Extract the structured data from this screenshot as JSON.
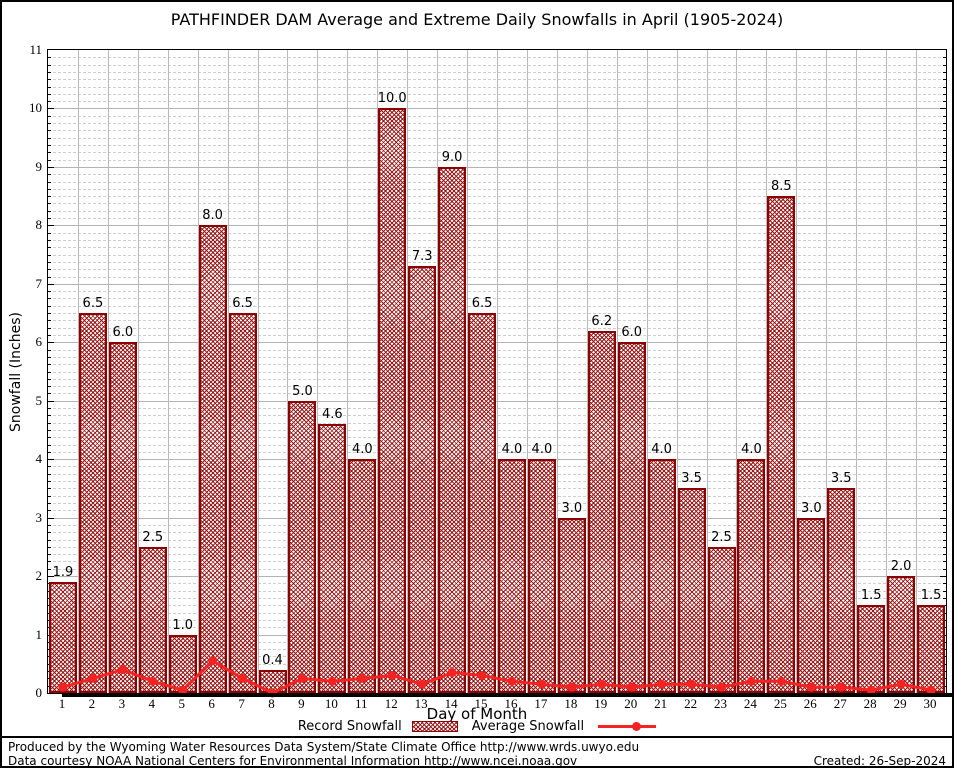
{
  "title": "PATHFINDER DAM Average and Extreme Daily Snowfalls in April (1905-2024)",
  "chart_data": {
    "type": "bar",
    "title": "PATHFINDER DAM Average and Extreme Daily Snowfalls in April (1905-2024)",
    "xlabel": "Day of Month",
    "ylabel": "Snowfall (Inches)",
    "ylim": [
      0,
      11
    ],
    "xlim_days": [
      1,
      30
    ],
    "grid": true,
    "legend_position": "bottom",
    "x": [
      1,
      2,
      3,
      4,
      5,
      6,
      7,
      8,
      9,
      10,
      11,
      12,
      13,
      14,
      15,
      16,
      17,
      18,
      19,
      20,
      21,
      22,
      23,
      24,
      25,
      26,
      27,
      28,
      29,
      30
    ],
    "series": [
      {
        "name": "Record Snowfall",
        "type": "bar",
        "values": [
          1.9,
          6.5,
          6.0,
          2.5,
          1.0,
          8.0,
          6.5,
          0.4,
          5.0,
          4.6,
          4.0,
          10.0,
          7.3,
          9.0,
          6.5,
          4.0,
          4.0,
          3.0,
          6.2,
          6.0,
          4.0,
          3.5,
          2.5,
          4.0,
          8.5,
          3.0,
          3.5,
          1.5,
          2.0,
          1.5
        ],
        "labels": [
          "1.9",
          "6.5",
          "6.0",
          "2.5",
          "1.0",
          "8.0",
          "6.5",
          "0.4",
          "5.0",
          "4.6",
          "4.0",
          "10.0",
          "7.3",
          "9.0",
          "6.5",
          "4.0",
          "4.0",
          "3.0",
          "6.2",
          "6.0",
          "4.0",
          "3.5",
          "2.5",
          "4.0",
          "8.5",
          "3.0",
          "3.5",
          "1.5",
          "2.0",
          "1.5"
        ]
      },
      {
        "name": "Average Snowfall",
        "type": "line",
        "values": [
          0.1,
          0.25,
          0.4,
          0.2,
          0.05,
          0.55,
          0.25,
          0.0,
          0.25,
          0.2,
          0.25,
          0.3,
          0.15,
          0.35,
          0.3,
          0.2,
          0.15,
          0.1,
          0.15,
          0.1,
          0.15,
          0.15,
          0.1,
          0.2,
          0.2,
          0.1,
          0.1,
          0.05,
          0.15,
          0.05
        ]
      }
    ],
    "yticks": [
      0,
      1,
      2,
      3,
      4,
      5,
      6,
      7,
      8,
      9,
      10,
      11
    ]
  },
  "legend": {
    "record_label": "Record Snowfall",
    "average_label": "Average Snowfall"
  },
  "footer": {
    "line1": "Produced by the Wyoming Water Resources Data System/State Climate Office http://www.wrds.uwyo.edu",
    "line2": "Data courtesy NOAA National Centers for Environmental Information http://www.ncei.noaa.gov",
    "created": "Created: 26-Sep-2024"
  },
  "colors": {
    "bar_border": "#8b0000",
    "bar_hatch": "#961010",
    "line": "#f52222",
    "grid_major": "#b3b3b3",
    "grid_minor": "#cfcfcf",
    "text": "#000000"
  }
}
